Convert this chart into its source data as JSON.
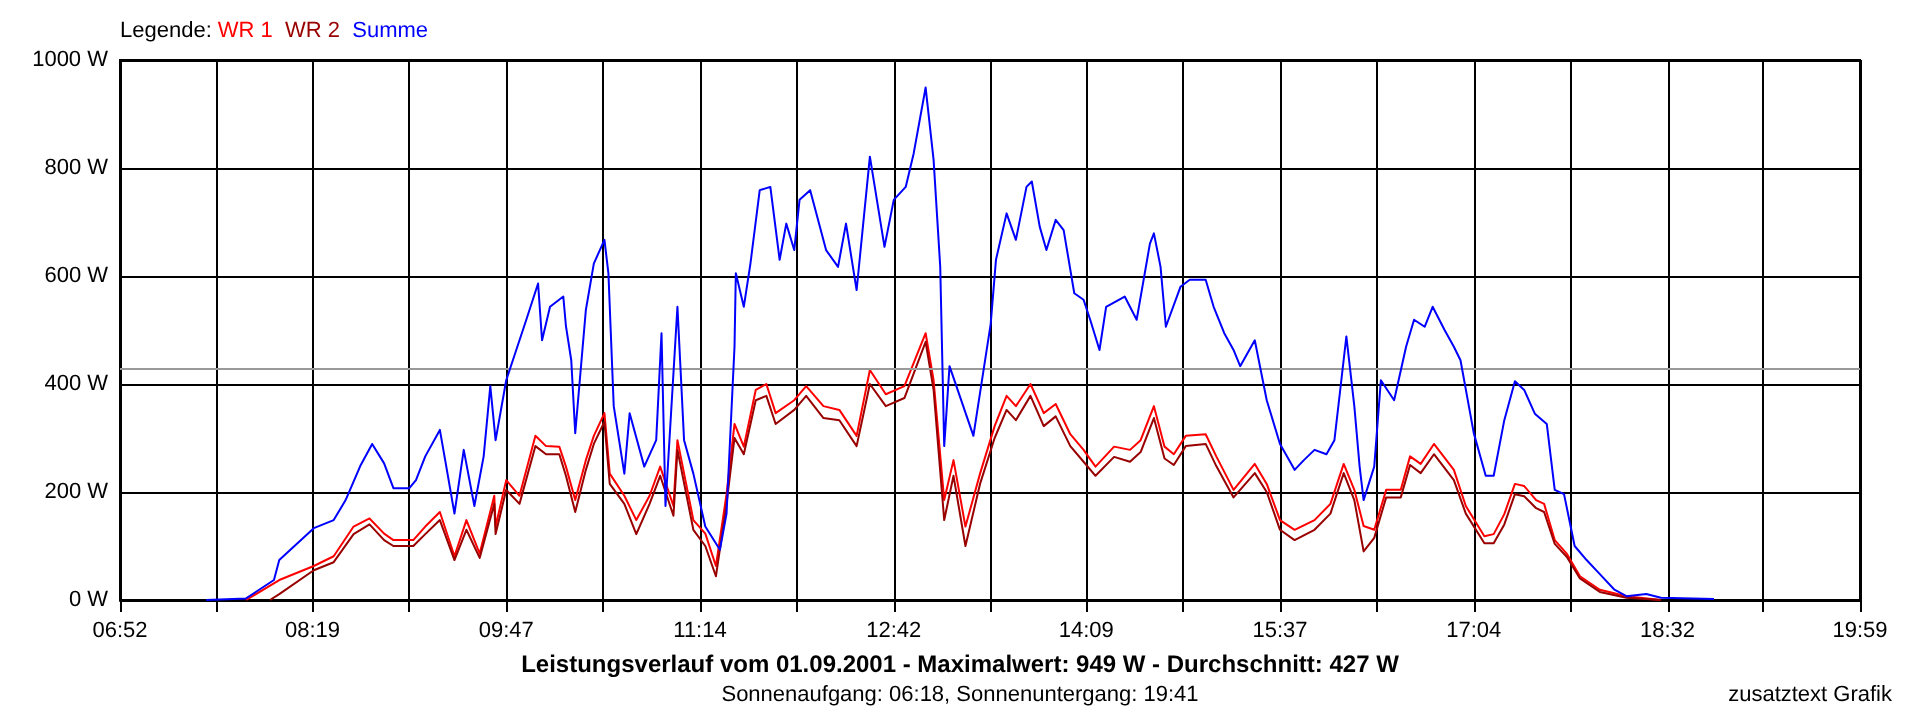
{
  "chart_data": {
    "type": "line",
    "title": "Leistungsverlauf vom 01.09.2001 - Maximalwert: 949 W - Durchschnitt: 427 W",
    "subtitle": "Sonnenaufgang: 06:18, Sonnenuntergang: 19:41",
    "annotations": [
      "zusatztext Grafik"
    ],
    "legend_title": "Legende:",
    "legend": "top left",
    "grid": true,
    "line_style": "solid",
    "xlim": [
      6.87,
      19.98
    ],
    "xticks": [
      {
        "value": 6.87,
        "label": "06:52"
      },
      {
        "value": 7.6,
        "label": null
      },
      {
        "value": 8.32,
        "label": "08:19"
      },
      {
        "value": 9.05,
        "label": null
      },
      {
        "value": 9.78,
        "label": "09:47"
      },
      {
        "value": 10.51,
        "label": null
      },
      {
        "value": 11.24,
        "label": "11:14"
      },
      {
        "value": 11.97,
        "label": null
      },
      {
        "value": 12.7,
        "label": "12:42"
      },
      {
        "value": 13.43,
        "label": null
      },
      {
        "value": 14.15,
        "label": "14:09"
      },
      {
        "value": 14.88,
        "label": null
      },
      {
        "value": 15.61,
        "label": "15:37"
      },
      {
        "value": 16.34,
        "label": null
      },
      {
        "value": 17.07,
        "label": "17:04"
      },
      {
        "value": 17.8,
        "label": null
      },
      {
        "value": 18.53,
        "label": "18:32"
      },
      {
        "value": 19.25,
        "label": null
      },
      {
        "value": 19.98,
        "label": "19:59"
      }
    ],
    "ylim": [
      0,
      1000
    ],
    "yticks": [
      {
        "value": 0,
        "label": "0 W"
      },
      {
        "value": 200,
        "label": "200 W"
      },
      {
        "value": 400,
        "label": "400 W"
      },
      {
        "value": 600,
        "label": "600 W"
      },
      {
        "value": 800,
        "label": "800 W"
      },
      {
        "value": 1000,
        "label": "1000 W"
      }
    ],
    "ref_lines": [
      {
        "axis": "y",
        "value": 427,
        "label": null,
        "color": "#999999"
      }
    ],
    "series": [
      {
        "name": "WR 1",
        "color": "#ff0000",
        "x": [
          7.82,
          8.07,
          8.33,
          8.48,
          8.63,
          8.75,
          8.86,
          8.93,
          9.08,
          9.17,
          9.28,
          9.39,
          9.48,
          9.58,
          9.69,
          9.7,
          9.78,
          9.88,
          10.0,
          10.08,
          10.18,
          10.23,
          10.3,
          10.38,
          10.44,
          10.52,
          10.56,
          10.67,
          10.76,
          10.86,
          10.94,
          11.04,
          11.07,
          11.19,
          11.28,
          11.36,
          11.44,
          11.5,
          11.57,
          11.66,
          11.74,
          11.81,
          11.95,
          12.04,
          12.17,
          12.29,
          12.42,
          12.52,
          12.64,
          12.78,
          12.94,
          13.0,
          13.08,
          13.15,
          13.24,
          13.35,
          13.46,
          13.55,
          13.62,
          13.73,
          13.83,
          13.92,
          14.03,
          14.13,
          14.22,
          14.36,
          14.48,
          14.56,
          14.66,
          14.74,
          14.81,
          14.9,
          15.05,
          15.13,
          15.26,
          15.42,
          15.51,
          15.61,
          15.72,
          15.87,
          15.99,
          16.09,
          16.17,
          16.24,
          16.32,
          16.41,
          16.52,
          16.59,
          16.67,
          16.77,
          16.92,
          17.01,
          17.15,
          17.22,
          17.3,
          17.38,
          17.45,
          17.54,
          17.6,
          17.68,
          17.77,
          17.87,
          18.02,
          18.22,
          18.48
        ],
        "values": [
          0,
          37,
          63,
          81,
          136,
          151,
          123,
          111,
          111,
          136,
          163,
          81,
          148,
          86,
          193,
          136,
          222,
          193,
          304,
          285,
          284,
          247,
          185,
          259,
          304,
          346,
          234,
          193,
          148,
          193,
          247,
          174,
          296,
          148,
          123,
          63,
          196,
          326,
          284,
          389,
          400,
          346,
          370,
          396,
          359,
          352,
          304,
          426,
          381,
          396,
          494,
          407,
          185,
          259,
          136,
          234,
          322,
          378,
          359,
          400,
          346,
          363,
          307,
          278,
          247,
          284,
          278,
          296,
          359,
          284,
          270,
          304,
          307,
          266,
          204,
          252,
          215,
          148,
          130,
          148,
          178,
          252,
          204,
          137,
          130,
          204,
          204,
          266,
          252,
          289,
          241,
          174,
          118,
          122,
          159,
          215,
          211,
          185,
          178,
          111,
          86,
          44,
          19,
          7,
          0
        ]
      },
      {
        "name": "WR 2",
        "color": "#990000",
        "x": [
          8.0,
          8.07,
          8.33,
          8.48,
          8.63,
          8.75,
          8.86,
          8.93,
          9.08,
          9.17,
          9.28,
          9.39,
          9.48,
          9.58,
          9.69,
          9.7,
          9.78,
          9.88,
          10.0,
          10.08,
          10.18,
          10.23,
          10.3,
          10.38,
          10.44,
          10.52,
          10.56,
          10.67,
          10.76,
          10.86,
          10.94,
          11.04,
          11.07,
          11.19,
          11.28,
          11.36,
          11.44,
          11.5,
          11.57,
          11.66,
          11.74,
          11.81,
          11.95,
          12.04,
          12.17,
          12.29,
          12.42,
          12.52,
          12.64,
          12.78,
          12.94,
          13.0,
          13.08,
          13.15,
          13.24,
          13.35,
          13.46,
          13.55,
          13.62,
          13.73,
          13.83,
          13.92,
          14.03,
          14.13,
          14.22,
          14.36,
          14.48,
          14.56,
          14.66,
          14.74,
          14.81,
          14.9,
          15.05,
          15.13,
          15.26,
          15.42,
          15.51,
          15.61,
          15.72,
          15.87,
          15.99,
          16.09,
          16.17,
          16.24,
          16.32,
          16.41,
          16.52,
          16.59,
          16.67,
          16.77,
          16.92,
          17.01,
          17.15,
          17.22,
          17.3,
          17.38,
          17.45,
          17.54,
          17.6,
          17.68,
          17.77,
          17.87,
          18.02,
          18.22,
          18.48
        ],
        "values": [
          0,
          11,
          55,
          70,
          122,
          140,
          111,
          100,
          100,
          122,
          148,
          74,
          130,
          78,
          178,
          122,
          204,
          178,
          285,
          270,
          270,
          230,
          163,
          241,
          289,
          330,
          215,
          178,
          122,
          178,
          230,
          156,
          278,
          130,
          100,
          44,
          178,
          300,
          270,
          370,
          378,
          326,
          352,
          378,
          337,
          333,
          285,
          400,
          359,
          374,
          478,
          389,
          148,
          230,
          100,
          215,
          300,
          352,
          333,
          378,
          322,
          340,
          285,
          256,
          230,
          265,
          256,
          274,
          337,
          262,
          250,
          285,
          289,
          248,
          190,
          235,
          200,
          130,
          111,
          130,
          160,
          235,
          185,
          90,
          115,
          190,
          190,
          250,
          235,
          270,
          222,
          160,
          105,
          105,
          140,
          196,
          192,
          170,
          163,
          104,
          80,
          40,
          15,
          4,
          0
        ]
      },
      {
        "name": "Summe",
        "color": "#0000ff",
        "x": [
          7.52,
          7.82,
          8.03,
          8.07,
          8.33,
          8.48,
          8.57,
          8.68,
          8.77,
          8.86,
          8.93,
          9.05,
          9.1,
          9.17,
          9.28,
          9.32,
          9.39,
          9.46,
          9.54,
          9.61,
          9.66,
          9.7,
          9.78,
          9.93,
          10.02,
          10.05,
          10.11,
          10.21,
          10.23,
          10.27,
          10.3,
          10.38,
          10.44,
          10.52,
          10.55,
          10.59,
          10.67,
          10.71,
          10.82,
          10.91,
          10.95,
          10.98,
          11.07,
          11.12,
          11.19,
          11.28,
          11.39,
          11.44,
          11.5,
          11.51,
          11.57,
          11.62,
          11.69,
          11.77,
          11.84,
          11.89,
          11.95,
          11.99,
          12.07,
          12.19,
          12.28,
          12.34,
          12.42,
          12.52,
          12.63,
          12.7,
          12.79,
          12.85,
          12.94,
          13.0,
          13.05,
          13.08,
          13.12,
          13.3,
          13.43,
          13.47,
          13.55,
          13.62,
          13.7,
          13.74,
          13.8,
          13.85,
          13.92,
          13.98,
          14.06,
          14.13,
          14.18,
          14.25,
          14.3,
          14.44,
          14.53,
          14.63,
          14.66,
          14.71,
          14.75,
          14.86,
          14.93,
          15.05,
          15.11,
          15.19,
          15.26,
          15.31,
          15.42,
          15.51,
          15.61,
          15.72,
          15.79,
          15.87,
          15.96,
          16.02,
          16.06,
          16.11,
          16.17,
          16.21,
          16.24,
          16.32,
          16.37,
          16.47,
          16.56,
          16.62,
          16.7,
          16.76,
          16.85,
          16.92,
          16.97,
          17.07,
          17.16,
          17.22,
          17.3,
          17.38,
          17.45,
          17.53,
          17.62,
          17.68,
          17.75,
          17.83,
          17.92,
          18.02,
          18.13,
          18.22,
          18.37,
          18.48,
          18.88
        ],
        "values": [
          0,
          3,
          37,
          74,
          133,
          148,
          185,
          248,
          289,
          253,
          207,
          207,
          222,
          266,
          315,
          259,
          160,
          278,
          174,
          266,
          396,
          296,
          407,
          518,
          586,
          481,
          543,
          562,
          507,
          444,
          309,
          537,
          623,
          667,
          605,
          359,
          234,
          346,
          247,
          296,
          494,
          174,
          543,
          296,
          234,
          136,
          93,
          160,
          469,
          605,
          543,
          623,
          759,
          765,
          630,
          697,
          648,
          741,
          759,
          648,
          617,
          697,
          574,
          821,
          654,
          741,
          765,
          827,
          949,
          815,
          617,
          285,
          433,
          304,
          511,
          630,
          716,
          667,
          765,
          775,
          691,
          648,
          704,
          685,
          568,
          556,
          519,
          463,
          543,
          562,
          519,
          660,
          679,
          617,
          506,
          580,
          593,
          593,
          543,
          494,
          463,
          433,
          481,
          370,
          289,
          241,
          259,
          278,
          270,
          296,
          381,
          488,
          359,
          247,
          185,
          247,
          407,
          370,
          469,
          519,
          506,
          543,
          500,
          469,
          444,
          309,
          230,
          230,
          333,
          405,
          389,
          345,
          326,
          204,
          196,
          100,
          74,
          48,
          19,
          7,
          11,
          4,
          2
        ]
      }
    ]
  }
}
